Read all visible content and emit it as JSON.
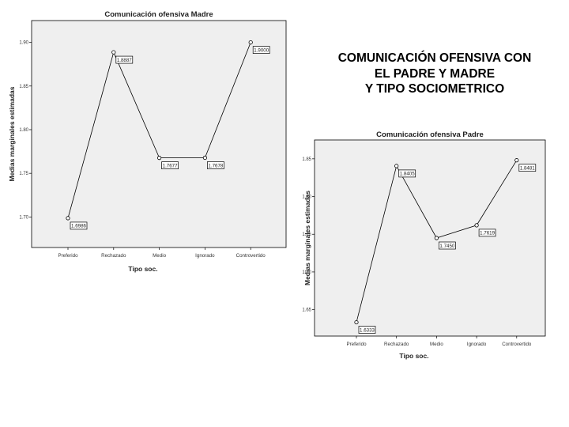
{
  "heading": {
    "line1": "COMUNICACIÓN OFENSIVA CON",
    "line2": "EL PADRE Y MADRE",
    "line3": "Y TIPO SOCIOMETRICO"
  },
  "chart_data": [
    {
      "type": "line",
      "title": "Comunicación ofensiva Madre",
      "xlabel": "Tipo soc.",
      "ylabel": "Medias marginales estimadas",
      "categories": [
        "Preferido",
        "Rechazado",
        "Medio",
        "Ignorado",
        "Controvertido"
      ],
      "values": [
        1.6986,
        1.8887,
        1.7677,
        1.7678,
        1.9
      ],
      "data_labels": [
        "1.6986",
        "1.8887",
        "1.7677",
        "1.7678",
        "1.9000"
      ],
      "yticks": [
        "1.70",
        "1.75",
        "1.80",
        "1.85",
        "1.90"
      ],
      "ylim": [
        1.665,
        1.925
      ],
      "grid": false
    },
    {
      "type": "line",
      "title": "Comunicación ofensiva Padre",
      "xlabel": "Tipo soc.",
      "ylabel": "Medias marginales estimadas",
      "categories": [
        "Preferido",
        "Rechazado",
        "Medio",
        "Ignorado",
        "Controvertido"
      ],
      "values": [
        1.6333,
        1.8405,
        1.745,
        1.7619,
        1.8481
      ],
      "data_labels": [
        "1.6333",
        "1.8405",
        "1.7450",
        "1.7619",
        "1.8481"
      ],
      "yticks": [
        "1.65",
        "1.70",
        "1.75",
        "1.80",
        "1.85"
      ],
      "ylim": [
        1.615,
        1.875
      ],
      "grid": false
    }
  ]
}
